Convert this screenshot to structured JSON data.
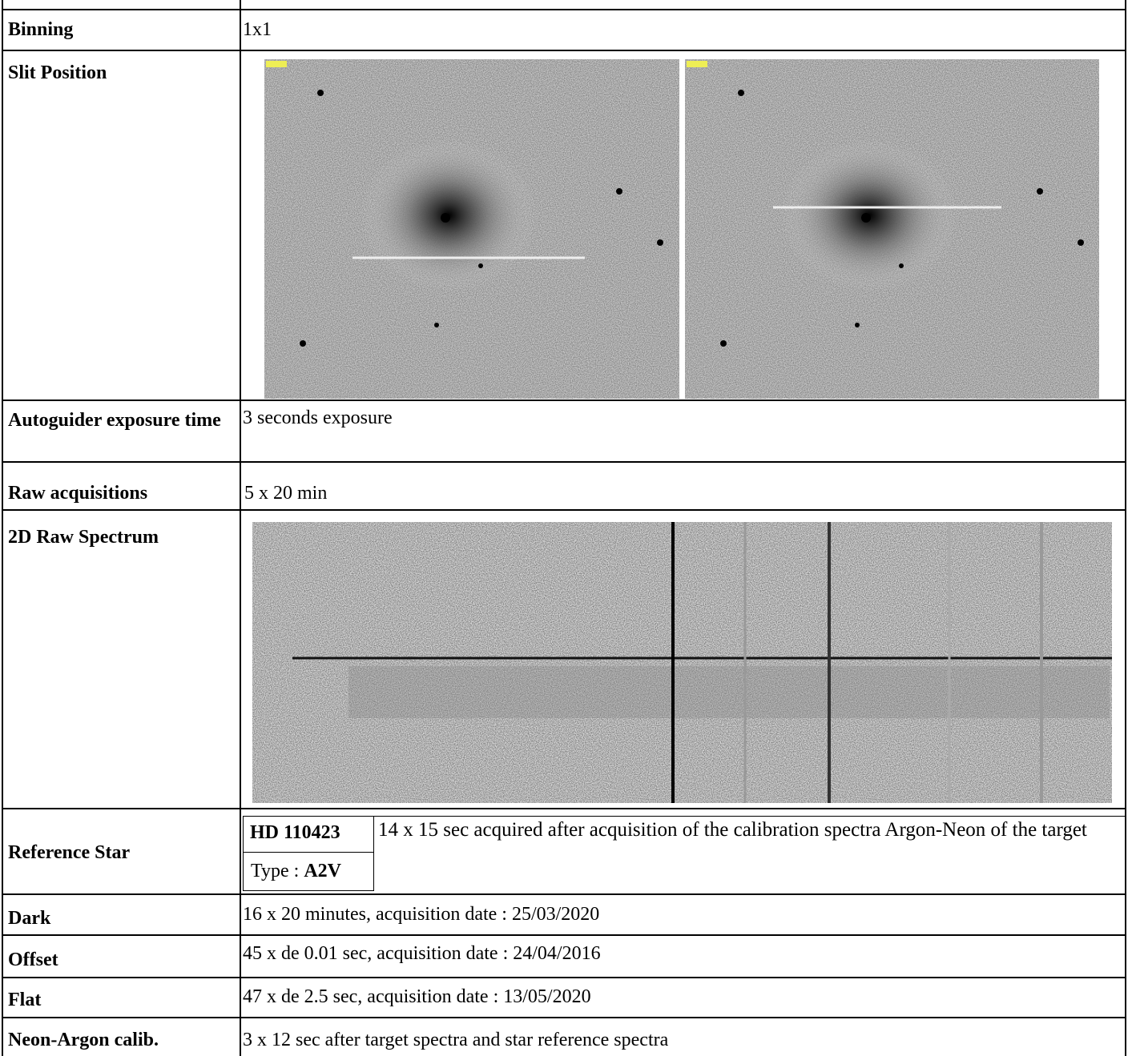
{
  "rows": [
    {
      "label": "Binning",
      "value": "1x1"
    },
    {
      "label": "Slit Position"
    },
    {
      "label": "Autoguider exposure time",
      "value": "3 seconds exposure"
    },
    {
      "label": "Raw acquisitions",
      "value": "5 x 20 min"
    },
    {
      "label": "2D Raw Spectrum"
    },
    {
      "label": "Reference Star",
      "star_name": "HD 110423",
      "type_label": "Type :",
      "type_value": "A2V",
      "value": "14 x 15 sec acquired after acquisition of the calibration spectra Argon-Neon of the target"
    },
    {
      "label": "Dark",
      "value": "16 x 20 minutes, acquisition date : 25/03/2020"
    },
    {
      "label": "Offset",
      "value": "45 x de 0.01 sec, acquisition date : 24/04/2016"
    },
    {
      "label": "Flat",
      "value": "47 x de 2.5 sec, acquisition date : 13/05/2020"
    },
    {
      "label": "Neon-Argon calib.",
      "value": "3 x 12 sec after target spectra and star reference spectra"
    }
  ]
}
